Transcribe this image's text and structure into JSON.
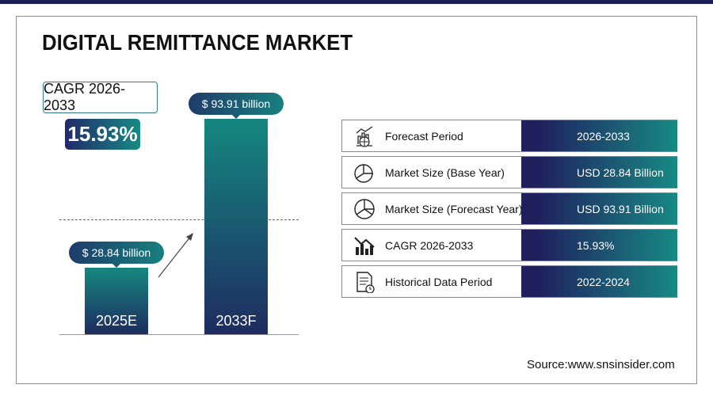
{
  "title": "DIGITAL REMITTANCE MARKET",
  "cagr": {
    "label": "CAGR 2026-2033",
    "value": "15.93%"
  },
  "chart_data": {
    "type": "bar",
    "categories": [
      "2025E",
      "2033F"
    ],
    "values": [
      28.84,
      93.91
    ],
    "data_labels": [
      "$ 28.84 billion",
      "$ 93.91 billion"
    ],
    "ylim": [
      0,
      100
    ]
  },
  "table": [
    {
      "label": "Forecast Period",
      "value": "2026-2033",
      "icon": "chart-globe-icon"
    },
    {
      "label": "Market Size (Base Year)",
      "value": "USD 28.84 Billion",
      "icon": "pie-chart-icon"
    },
    {
      "label": "Market Size (Forecast Year)",
      "value": "USD 93.91 Billion",
      "icon": "pie-chart-icon"
    },
    {
      "label": "CAGR 2026-2033",
      "value": "15.93%",
      "icon": "bar-chart-trend-icon"
    },
    {
      "label": "Historical Data Period",
      "value": "2022-2024",
      "icon": "document-clock-icon"
    }
  ],
  "source": "Source:www.snsinsider.com",
  "colors": {
    "navy": "#1f1f5e",
    "teal": "#178a84"
  }
}
